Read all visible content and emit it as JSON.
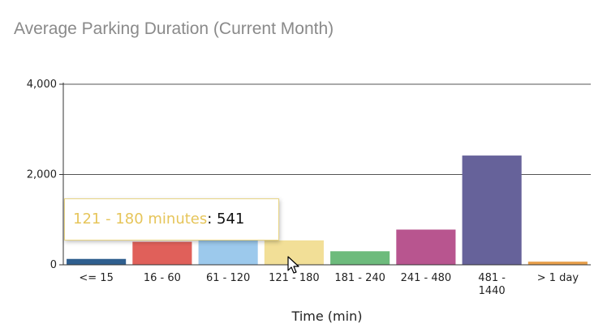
{
  "chart_data": {
    "type": "bar",
    "title": "Average Parking Duration (Current Month)",
    "xlabel": "Time (min)",
    "ylabel": "",
    "ylim": [
      0,
      4000
    ],
    "yticks": [
      "4,000",
      "2,000",
      "0"
    ],
    "ytick_values": [
      4000,
      2000,
      0
    ],
    "categories": [
      [
        "<= 15"
      ],
      [
        "16 - 60"
      ],
      [
        "61 - 120"
      ],
      [
        "121 - 180"
      ],
      [
        "181 - 240"
      ],
      [
        "241 - 480"
      ],
      [
        "481 -",
        "1440"
      ],
      [
        "> 1 day"
      ]
    ],
    "values": [
      130,
      510,
      540,
      541,
      300,
      780,
      2420,
      70
    ],
    "colors": [
      "#2f5f8f",
      "#e0605a",
      "#9cc9ec",
      "#f2df97",
      "#6dbb7c",
      "#b8558f",
      "#66629a",
      "#e8a04c"
    ],
    "grid": true,
    "legend": "none"
  },
  "tooltip": {
    "label": "121 - 180 minutes",
    "separator": ": ",
    "value": "541",
    "border_color": "#e8d483"
  },
  "cursor_icon": "mouse-pointer-icon"
}
